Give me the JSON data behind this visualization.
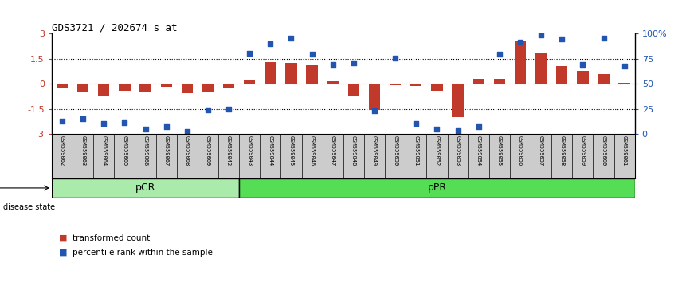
{
  "title": "GDS3721 / 202674_s_at",
  "samples": [
    "GSM559062",
    "GSM559063",
    "GSM559064",
    "GSM559065",
    "GSM559066",
    "GSM559067",
    "GSM559068",
    "GSM559069",
    "GSM559042",
    "GSM559043",
    "GSM559044",
    "GSM559045",
    "GSM559046",
    "GSM559047",
    "GSM559048",
    "GSM559049",
    "GSM559050",
    "GSM559051",
    "GSM559052",
    "GSM559053",
    "GSM559054",
    "GSM559055",
    "GSM559056",
    "GSM559057",
    "GSM559058",
    "GSM559059",
    "GSM559060",
    "GSM559061"
  ],
  "bar_values": [
    -0.28,
    -0.5,
    -0.7,
    -0.4,
    -0.5,
    -0.18,
    -0.55,
    -0.45,
    -0.25,
    0.2,
    1.3,
    1.25,
    1.15,
    0.18,
    -0.7,
    -1.55,
    -0.08,
    -0.12,
    -0.4,
    -2.0,
    0.3,
    0.3,
    2.55,
    1.85,
    1.05,
    0.8,
    0.6,
    0.08
  ],
  "dot_values": [
    -2.25,
    -2.1,
    -2.35,
    -2.3,
    -2.7,
    -2.55,
    -2.85,
    -1.55,
    -1.5,
    1.85,
    2.4,
    2.75,
    1.8,
    1.15,
    1.25,
    -1.6,
    1.55,
    -2.35,
    -2.7,
    -2.8,
    -2.55,
    1.8,
    2.5,
    2.95,
    2.7,
    1.15,
    2.75,
    1.05
  ],
  "pCR_count": 9,
  "pPR_count": 19,
  "bar_color": "#c0392b",
  "dot_color": "#2155b0",
  "background_color": "#ffffff",
  "ylim": [
    -3,
    3
  ],
  "right_ylim": [
    0,
    100
  ],
  "right_yticks": [
    0,
    25,
    50,
    75,
    100
  ],
  "right_yticklabels": [
    "0",
    "25",
    "50",
    "75",
    "100%"
  ],
  "yticks_left": [
    -3,
    -1.5,
    0,
    1.5,
    3
  ],
  "yticklabels_left": [
    "-3",
    "-1.5",
    "0",
    "1.5",
    "3"
  ],
  "dotted_lines": [
    1.5,
    -1.5
  ],
  "pCR_color": "#aaeaaa",
  "pPR_color": "#55dd55",
  "label_transformed": "transformed count",
  "label_percentile": "percentile rank within the sample",
  "label_area_color": "#cccccc"
}
